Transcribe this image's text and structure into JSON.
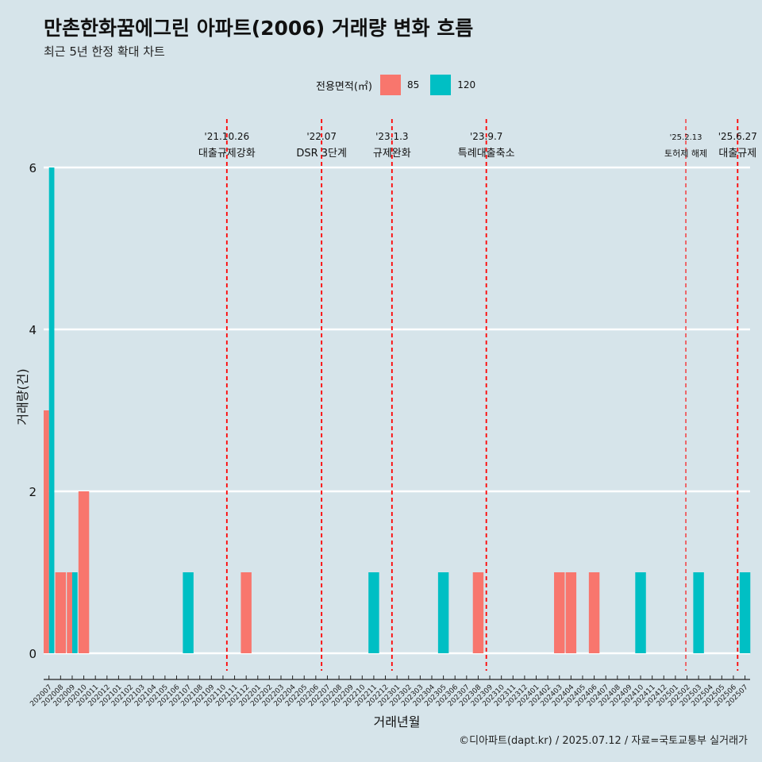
{
  "chart_data": {
    "type": "bar",
    "title": "만촌한화꿈에그린 아파트(2006) 거래량 변화 흐름",
    "subtitle": "최근 5년 한정 확대 차트",
    "xlabel": "거래년월",
    "ylabel": "거래량(건)",
    "ylim": [
      0,
      6
    ],
    "yticks": [
      0,
      2,
      4,
      6
    ],
    "grid": "horizontal",
    "legend_title": "전용면적(㎡)",
    "legend_position": "top",
    "categories": [
      "202007",
      "202008",
      "202009",
      "202010",
      "202011",
      "202012",
      "202101",
      "202102",
      "202103",
      "202104",
      "202105",
      "202106",
      "202107",
      "202108",
      "202109",
      "202110",
      "202111",
      "202112",
      "202201",
      "202202",
      "202203",
      "202204",
      "202205",
      "202206",
      "202207",
      "202208",
      "202209",
      "202210",
      "202211",
      "202212",
      "202301",
      "202302",
      "202303",
      "202304",
      "202305",
      "202306",
      "202307",
      "202308",
      "202309",
      "202310",
      "202311",
      "202312",
      "202401",
      "202402",
      "202403",
      "202404",
      "202405",
      "202406",
      "202407",
      "202408",
      "202409",
      "202410",
      "202411",
      "202412",
      "202501",
      "202502",
      "202503",
      "202504",
      "202505",
      "202506",
      "202507"
    ],
    "series": [
      {
        "name": "85",
        "color": "#f8766d",
        "values": [
          3,
          1,
          1,
          2,
          0,
          0,
          0,
          0,
          0,
          0,
          0,
          0,
          0,
          0,
          0,
          0,
          0,
          1,
          0,
          0,
          0,
          0,
          0,
          0,
          0,
          0,
          0,
          0,
          0,
          0,
          0,
          0,
          0,
          0,
          0,
          0,
          0,
          1,
          0,
          0,
          0,
          0,
          0,
          0,
          1,
          1,
          0,
          1,
          0,
          0,
          0,
          0,
          0,
          0,
          0,
          0,
          0,
          0,
          0,
          0,
          0
        ]
      },
      {
        "name": "120",
        "color": "#00bfc4",
        "values": [
          6,
          0,
          1,
          0,
          0,
          0,
          0,
          0,
          0,
          0,
          0,
          0,
          1,
          0,
          0,
          0,
          0,
          0,
          0,
          0,
          0,
          0,
          0,
          0,
          0,
          0,
          0,
          0,
          1,
          0,
          0,
          0,
          0,
          0,
          1,
          0,
          0,
          0,
          0,
          0,
          0,
          0,
          0,
          0,
          0,
          0,
          0,
          0,
          0,
          0,
          0,
          1,
          0,
          0,
          0,
          0,
          1,
          0,
          0,
          0,
          1
        ]
      }
    ],
    "events": [
      {
        "date": "'21.10.26",
        "label": "대출규제강화",
        "month": "202110",
        "day": 26,
        "style": "bold"
      },
      {
        "date": "'22.07",
        "label": "DSR 3단계",
        "month": "202207",
        "day": 1,
        "style": "bold"
      },
      {
        "date": "'23.1.3",
        "label": "규제완화",
        "month": "202301",
        "day": 3,
        "style": "bold"
      },
      {
        "date": "'23.9.7",
        "label": "특례대출축소",
        "month": "202309",
        "day": 7,
        "style": "bold"
      },
      {
        "date": "'25.2.13",
        "label": "토허제 해제",
        "month": "202502",
        "day": 13,
        "style": "thin"
      },
      {
        "date": "'25.6.27",
        "label": "대출규제",
        "month": "202506",
        "day": 27,
        "style": "bold"
      }
    ],
    "event_line_color": "#ff0000",
    "caption": "©디아파트(dapt.kr) / 2025.07.12 / 자료=국토교통부 실거래가"
  }
}
